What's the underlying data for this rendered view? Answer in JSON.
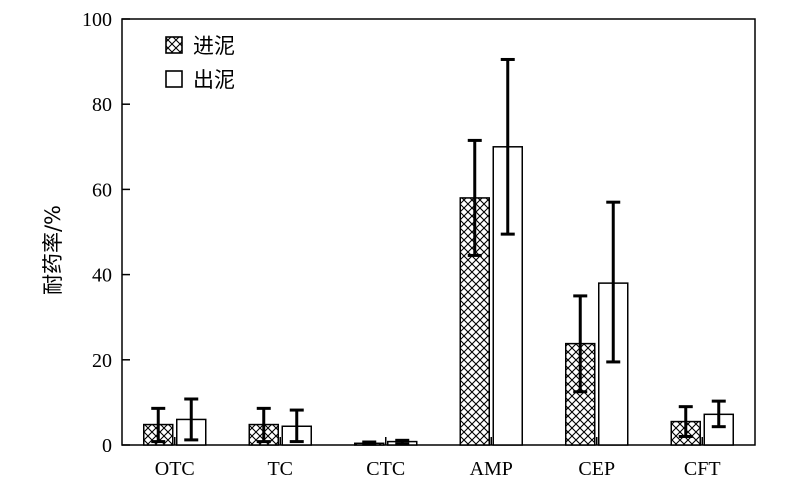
{
  "chart_data": {
    "type": "bar",
    "title": "",
    "xlabel": "",
    "ylabel": "耐药率/%",
    "ylim": [
      0,
      100
    ],
    "yticks": [
      0,
      20,
      40,
      60,
      80,
      100
    ],
    "grid": false,
    "legend_position": "top-left",
    "categories": [
      "OTC",
      "TC",
      "CTC",
      "AMP",
      "CEP",
      "CFT"
    ],
    "series": [
      {
        "name": "进泥",
        "pattern": "crosshatch",
        "color": "#000000",
        "values": [
          4.8,
          4.8,
          0.4,
          58.0,
          23.8,
          5.5
        ],
        "err_low": [
          0.8,
          0.8,
          0.2,
          44.5,
          12.5,
          2.0
        ],
        "err_high": [
          8.6,
          8.6,
          0.7,
          71.5,
          35.0,
          9.0
        ]
      },
      {
        "name": "出泥",
        "pattern": "none",
        "color": "#000000",
        "values": [
          6.0,
          4.4,
          0.8,
          70.0,
          38.0,
          7.2
        ],
        "err_low": [
          1.2,
          0.8,
          0.3,
          49.5,
          19.5,
          4.3
        ],
        "err_high": [
          10.8,
          8.2,
          1.1,
          90.5,
          57.0,
          10.3
        ]
      }
    ]
  }
}
